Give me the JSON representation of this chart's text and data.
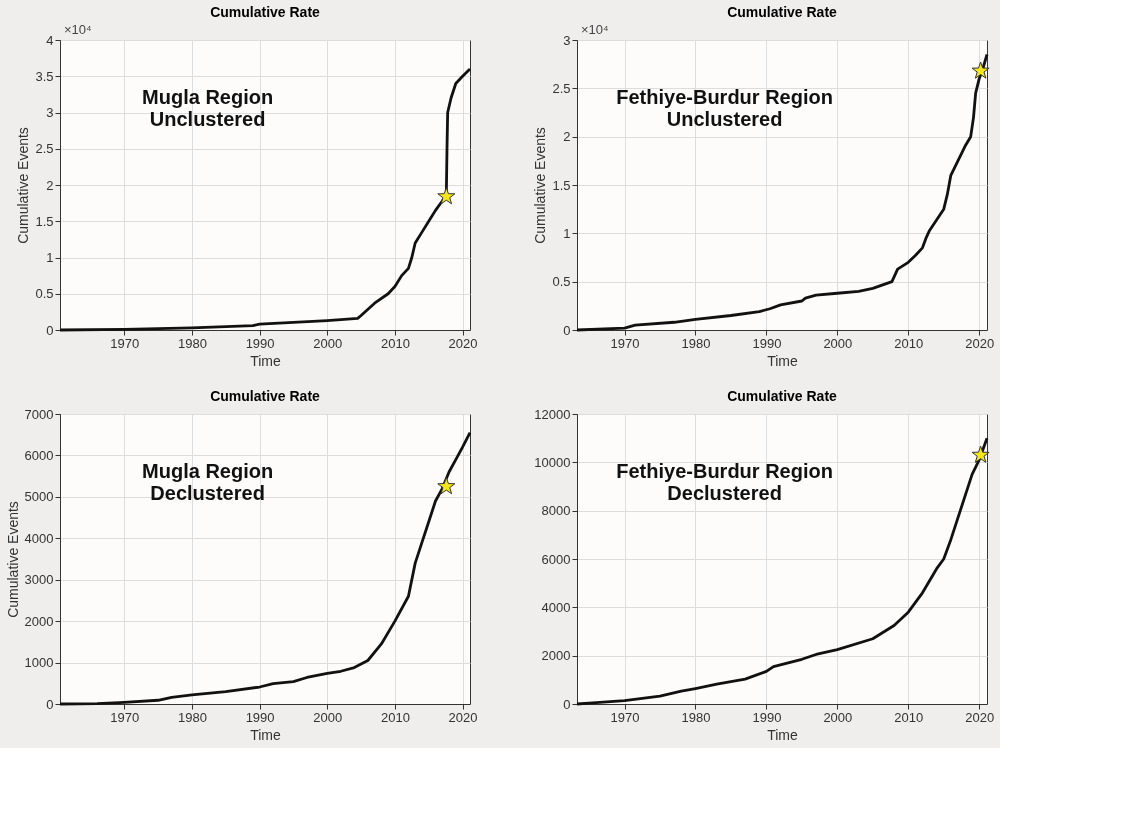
{
  "chart_data": [
    {
      "type": "line",
      "title": "Cumulative Rate",
      "xlabel": "Time",
      "ylabel": "Cumulative Events",
      "annotations": [
        "Mugla Region\nUnclustered",
        "×10⁴"
      ],
      "xlim": [
        1960.5,
        2021.1
      ],
      "xticks": [
        1970,
        1980,
        1990,
        2000,
        2010,
        2020
      ],
      "ylim": [
        0,
        4
      ],
      "yticks": [
        0,
        0.5,
        1,
        1.5,
        2,
        2.5,
        3,
        3.5,
        4
      ],
      "grid": true,
      "series": [
        {
          "color": "#111111",
          "x": [
            1960.5,
            1970,
            1980,
            1989,
            1990,
            2000,
            2004.5,
            2005,
            2007,
            2009,
            2010,
            2011,
            2012,
            2012.5,
            2013,
            2014,
            2015,
            2016,
            2017,
            2017.6,
            2017.7,
            2017.8,
            2018.3,
            2019,
            2020,
            2021.1
          ],
          "values": [
            0,
            0.01,
            0.03,
            0.06,
            0.08,
            0.13,
            0.16,
            0.2,
            0.37,
            0.5,
            0.6,
            0.75,
            0.85,
            1.0,
            1.2,
            1.35,
            1.5,
            1.65,
            1.78,
            1.85,
            2.5,
            3.0,
            3.2,
            3.4,
            3.5,
            3.6
          ]
        },
        {
          "type": "scatter",
          "marker": "star",
          "color": "#f5e61b",
          "x": [
            2017.6
          ],
          "values": [
            1.84
          ]
        }
      ]
    },
    {
      "type": "line",
      "title": "Cumulative Rate",
      "xlabel": "Time",
      "ylabel": "Cumulative Events",
      "annotations": [
        "Fethiye-Burdur Region\nUnclustered",
        "×10⁴"
      ],
      "xlim": [
        1963.3,
        2021.1
      ],
      "xticks": [
        1970,
        1980,
        1990,
        2000,
        2010,
        2020
      ],
      "ylim": [
        0,
        3
      ],
      "yticks": [
        0,
        0.5,
        1,
        1.5,
        2,
        2.5,
        3
      ],
      "grid": true,
      "series": [
        {
          "color": "#111111",
          "x": [
            1963.3,
            1970,
            1971.5,
            1977,
            1980,
            1985,
            1989,
            1990.5,
            1992,
            1995,
            1995.5,
            1997,
            2000,
            2003,
            2005,
            2007.7,
            2008.5,
            2010,
            2011,
            2012,
            2012.5,
            2013,
            2015,
            2015.5,
            2016,
            2017,
            2018,
            2018.8,
            2019.2,
            2019.5,
            2020,
            2020.5,
            2021.1
          ],
          "values": [
            0,
            0.02,
            0.05,
            0.08,
            0.11,
            0.15,
            0.19,
            0.22,
            0.26,
            0.3,
            0.33,
            0.36,
            0.38,
            0.4,
            0.43,
            0.5,
            0.63,
            0.7,
            0.77,
            0.85,
            0.95,
            1.03,
            1.25,
            1.4,
            1.6,
            1.75,
            1.9,
            2.0,
            2.2,
            2.45,
            2.6,
            2.7,
            2.85
          ]
        },
        {
          "type": "scatter",
          "marker": "star",
          "color": "#f5e61b",
          "x": [
            2020.2
          ],
          "values": [
            2.68
          ]
        }
      ]
    },
    {
      "type": "line",
      "title": "Cumulative Rate",
      "xlabel": "Time",
      "ylabel": "Cumulative Events",
      "annotations": [
        "Mugla Region\nDeclustered"
      ],
      "xlim": [
        1960.5,
        2021.1
      ],
      "xticks": [
        1970,
        1980,
        1990,
        2000,
        2010,
        2020
      ],
      "ylim": [
        0,
        7000
      ],
      "yticks": [
        0,
        1000,
        2000,
        3000,
        4000,
        5000,
        6000,
        7000
      ],
      "grid": true,
      "series": [
        {
          "color": "#111111",
          "x": [
            1960.5,
            1966,
            1970,
            1975,
            1977,
            1980,
            1985,
            1990,
            1992,
            1995,
            1997,
            2000,
            2002,
            2004,
            2006,
            2008,
            2010,
            2012,
            2013,
            2014,
            2015,
            2016,
            2017,
            2018,
            2019,
            2020,
            2021.1
          ],
          "values": [
            0,
            10,
            40,
            90,
            160,
            220,
            300,
            410,
            490,
            540,
            640,
            740,
            790,
            880,
            1050,
            1450,
            2000,
            2600,
            3400,
            3900,
            4400,
            4900,
            5200,
            5600,
            5900,
            6200,
            6550
          ]
        },
        {
          "type": "scatter",
          "marker": "star",
          "color": "#f5e61b",
          "x": [
            2017.6
          ],
          "values": [
            5250
          ]
        }
      ]
    },
    {
      "type": "line",
      "title": "Cumulative Rate",
      "xlabel": "Time",
      "annotations": [
        "Fethiye-Burdur Region\nDeclustered"
      ],
      "xlim": [
        1963.3,
        2021.1
      ],
      "xticks": [
        1970,
        1980,
        1990,
        2000,
        2010,
        2020
      ],
      "ylim": [
        0,
        12000
      ],
      "yticks": [
        0,
        2000,
        4000,
        6000,
        8000,
        10000,
        12000
      ],
      "grid": true,
      "series": [
        {
          "color": "#111111",
          "x": [
            1963.3,
            1965,
            1970,
            1975,
            1978,
            1980,
            1983,
            1987,
            1990,
            1991,
            1995,
            1997,
            2000,
            2005,
            2008,
            2010,
            2012,
            2014,
            2015,
            2016,
            2017,
            2018,
            2019,
            2020,
            2021.1
          ],
          "values": [
            0,
            40,
            140,
            330,
            530,
            640,
            820,
            1030,
            1350,
            1550,
            1850,
            2050,
            2250,
            2700,
            3250,
            3800,
            4600,
            5600,
            6000,
            6800,
            7700,
            8600,
            9500,
            10100,
            11000
          ]
        },
        {
          "type": "scatter",
          "marker": "star",
          "color": "#f5e61b",
          "x": [
            2020.2
          ],
          "values": [
            10300
          ]
        }
      ]
    }
  ]
}
